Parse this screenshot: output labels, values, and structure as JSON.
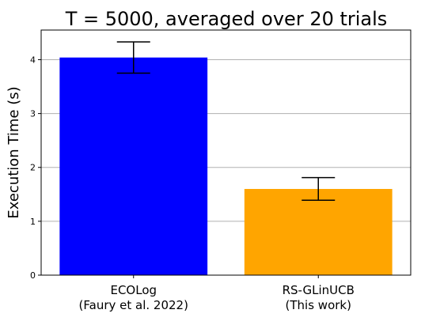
{
  "chart_data": {
    "type": "bar",
    "title": "T = 5000, averaged over 20 trials",
    "xlabel": "",
    "ylabel": "Execution Time (s)",
    "ylim": [
      0,
      4.55
    ],
    "yticks": [
      "0",
      "1",
      "2",
      "3",
      "4"
    ],
    "grid": "y-major",
    "categories": [
      [
        "ECOLog",
        "(Faury et al. 2022)"
      ],
      [
        "RS-GLinUCB",
        "(This work)"
      ]
    ],
    "values": [
      4.04,
      1.6
    ],
    "error": [
      0.29,
      0.21
    ],
    "colors": [
      "#0000ff",
      "#ffa500"
    ],
    "error_color": "#000000"
  }
}
